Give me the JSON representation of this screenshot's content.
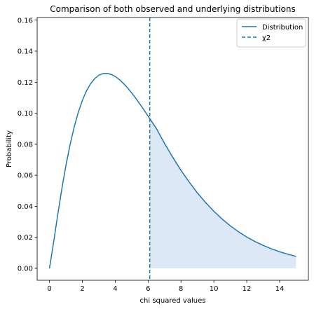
{
  "chart_data": {
    "type": "line",
    "title": "Comparison of both observed and underlying distributions",
    "xlabel": "chi squared values",
    "ylabel": "Probability",
    "xlim": [
      -0.75,
      15.75
    ],
    "ylim": [
      -0.0077,
      0.1617
    ],
    "xticks": [
      0,
      2,
      4,
      6,
      8,
      10,
      12,
      14
    ],
    "yticks": [
      0.0,
      0.02,
      0.04,
      0.06,
      0.08,
      0.1,
      0.12,
      0.14,
      0.16
    ],
    "ytick_labels": [
      "0.00",
      "0.02",
      "0.04",
      "0.06",
      "0.08",
      "0.10",
      "0.12",
      "0.14",
      "0.16"
    ],
    "grid": false,
    "legend_position": "top-right",
    "series": [
      {
        "name": "Distribution",
        "style": "solid",
        "color": "#1f77b4",
        "x": [
          0,
          0.25,
          0.5,
          0.75,
          1,
          1.25,
          1.5,
          1.75,
          2,
          2.25,
          2.5,
          2.75,
          3,
          3.25,
          3.5,
          3.75,
          4,
          4.25,
          4.5,
          4.75,
          5,
          5.25,
          5.5,
          5.75,
          6,
          6.1,
          6.5,
          7,
          7.5,
          8,
          8.5,
          9,
          9.5,
          10,
          10.5,
          11,
          11.5,
          12,
          12.5,
          13,
          13.5,
          14,
          14.5,
          15
        ],
        "y": [
          0,
          0.0167,
          0.0344,
          0.0511,
          0.0663,
          0.0796,
          0.091,
          0.1005,
          0.1083,
          0.1144,
          0.119,
          0.1223,
          0.1245,
          0.1255,
          0.1257,
          0.125,
          0.1237,
          0.1217,
          0.1192,
          0.1163,
          0.1131,
          0.1096,
          0.1059,
          0.1021,
          0.0981,
          0.0965,
          0.0902,
          0.0805,
          0.0716,
          0.0632,
          0.0556,
          0.0486,
          0.0424,
          0.0368,
          0.0318,
          0.0274,
          0.0236,
          0.0202,
          0.0173,
          0.0148,
          0.0126,
          0.0107,
          0.0091,
          0.0077
        ]
      }
    ],
    "critical_line": {
      "name": "χ2",
      "x": 6.1,
      "style": "dashed",
      "color": "#1f77b4"
    },
    "shaded_region": {
      "x_from": 6.1,
      "x_to": 15,
      "color": "#dce8f5"
    }
  }
}
